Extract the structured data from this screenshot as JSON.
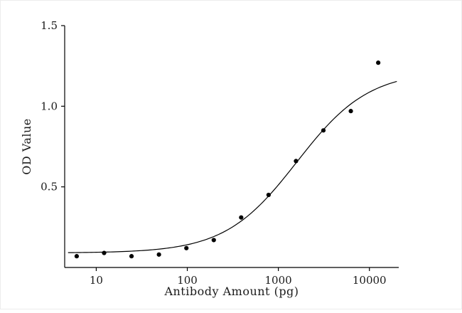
{
  "figure": {
    "background": "#ffffff",
    "axis_color": "#000000",
    "point_color": "#000000",
    "curve_color": "#000000",
    "text_color": "#1a1a1a"
  },
  "chart_data": {
    "type": "scatter",
    "title": "",
    "xlabel": "Antibody Amount (pg)",
    "ylabel": "OD Value",
    "xscale": "log",
    "xlim": [
      4.5,
      21000
    ],
    "ylim": [
      0,
      1.5
    ],
    "grid": false,
    "legend": null,
    "xticks": [
      {
        "value": 10,
        "label": "10"
      },
      {
        "value": 100,
        "label": "100"
      },
      {
        "value": 1000,
        "label": "1000"
      },
      {
        "value": 10000,
        "label": "10000"
      }
    ],
    "yticks": [
      {
        "value": 0.5,
        "label": "0.5"
      },
      {
        "value": 1.0,
        "label": "1.0"
      },
      {
        "value": 1.5,
        "label": "1.5"
      }
    ],
    "points": {
      "x": [
        6.1,
        12.2,
        24.4,
        48.8,
        97.7,
        195.3,
        390.6,
        781.3,
        1562.5,
        3125,
        6250,
        12500
      ],
      "y": [
        0.07,
        0.09,
        0.07,
        0.08,
        0.12,
        0.17,
        0.31,
        0.45,
        0.66,
        0.85,
        0.97,
        1.27
      ]
    },
    "fit_curve": {
      "model": "4PL",
      "bottom_asymptote": 0.09,
      "top_asymptote": 1.22,
      "ec50": 1600,
      "hill": 1.1,
      "x_start": 4.9,
      "x_end": 20000
    }
  }
}
